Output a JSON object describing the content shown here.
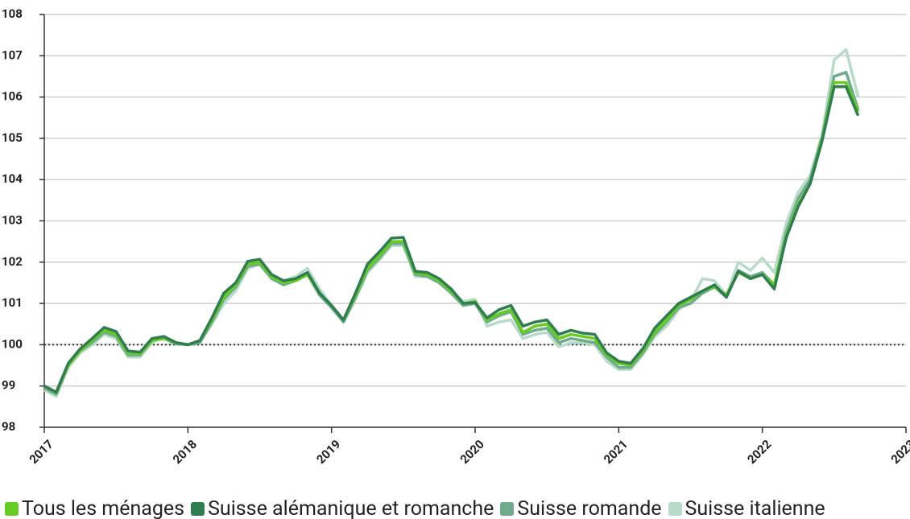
{
  "chart_data": {
    "type": "line",
    "x": [
      2017,
      2017.083,
      2017.167,
      2017.25,
      2017.333,
      2017.417,
      2017.5,
      2017.583,
      2017.667,
      2017.75,
      2017.833,
      2017.917,
      2018,
      2018.083,
      2018.167,
      2018.25,
      2018.333,
      2018.417,
      2018.5,
      2018.583,
      2018.667,
      2018.75,
      2018.833,
      2018.917,
      2019,
      2019.083,
      2019.167,
      2019.25,
      2019.333,
      2019.417,
      2019.5,
      2019.583,
      2019.667,
      2019.75,
      2019.833,
      2019.917,
      2020,
      2020.083,
      2020.167,
      2020.25,
      2020.333,
      2020.417,
      2020.5,
      2020.583,
      2020.667,
      2020.75,
      2020.833,
      2020.917,
      2021,
      2021.083,
      2021.167,
      2021.25,
      2021.333,
      2021.417,
      2021.5,
      2021.583,
      2021.667,
      2021.75,
      2021.833,
      2021.917,
      2022,
      2022.083,
      2022.167,
      2022.25,
      2022.333,
      2022.417,
      2022.5,
      2022.583,
      2022.667
    ],
    "series": [
      {
        "name": "Suisse italienne",
        "color": "#b8dbc9",
        "values": [
          98.9,
          98.75,
          99.45,
          99.8,
          100.0,
          100.25,
          100.15,
          99.7,
          99.7,
          100.05,
          100.2,
          100.05,
          100.0,
          100.05,
          100.5,
          101.0,
          101.3,
          101.85,
          101.95,
          101.65,
          101.55,
          101.65,
          101.85,
          101.35,
          100.95,
          100.55,
          101.1,
          101.75,
          102.05,
          102.4,
          102.4,
          101.65,
          101.65,
          101.5,
          101.3,
          101.05,
          101.1,
          100.45,
          100.55,
          100.6,
          100.15,
          100.25,
          100.3,
          99.95,
          100.05,
          100.05,
          100.0,
          99.6,
          99.4,
          99.4,
          99.75,
          100.2,
          100.45,
          100.85,
          101.05,
          101.6,
          101.55,
          101.2,
          102.0,
          101.8,
          102.1,
          101.75,
          102.95,
          103.7,
          104.1,
          105.1,
          106.9,
          107.15,
          106.0
        ]
      },
      {
        "name": "Suisse romande",
        "color": "#6fab8c",
        "values": [
          98.95,
          98.8,
          99.5,
          99.85,
          100.05,
          100.3,
          100.2,
          99.75,
          99.75,
          100.1,
          100.15,
          100.02,
          100.0,
          100.05,
          100.55,
          101.1,
          101.4,
          101.9,
          101.95,
          101.6,
          101.45,
          101.55,
          101.7,
          101.2,
          100.9,
          100.55,
          101.15,
          101.8,
          102.1,
          102.45,
          102.45,
          101.7,
          101.65,
          101.5,
          101.25,
          100.95,
          101.0,
          100.55,
          100.7,
          100.8,
          100.25,
          100.35,
          100.4,
          100.05,
          100.15,
          100.1,
          100.05,
          99.7,
          99.45,
          99.45,
          99.8,
          100.25,
          100.55,
          100.9,
          101.0,
          101.25,
          101.4,
          101.15,
          101.8,
          101.65,
          101.75,
          101.45,
          102.75,
          103.55,
          104.0,
          105.05,
          106.5,
          106.6,
          105.7
        ]
      },
      {
        "name": "Tous les ménages",
        "color": "#66cc22",
        "values": [
          99.0,
          98.85,
          99.5,
          99.85,
          100.1,
          100.35,
          100.25,
          99.8,
          99.78,
          100.1,
          100.15,
          100.05,
          100.0,
          100.1,
          100.6,
          101.15,
          101.45,
          101.95,
          102.0,
          101.65,
          101.5,
          101.55,
          101.7,
          101.25,
          100.95,
          100.6,
          101.2,
          101.85,
          102.15,
          102.5,
          102.5,
          101.75,
          101.7,
          101.55,
          101.3,
          101.0,
          101.05,
          100.6,
          100.75,
          100.85,
          100.3,
          100.45,
          100.5,
          100.15,
          100.25,
          100.2,
          100.15,
          99.75,
          99.55,
          99.5,
          99.85,
          100.3,
          100.6,
          100.95,
          101.1,
          101.3,
          101.4,
          101.2,
          101.75,
          101.6,
          101.7,
          101.45,
          102.65,
          103.4,
          103.9,
          105.0,
          106.35,
          106.35,
          105.65
        ]
      },
      {
        "name": "Suisse alémanique et romanche",
        "color": "#2f7d50",
        "values": [
          99.0,
          98.85,
          99.55,
          99.9,
          100.15,
          100.42,
          100.32,
          99.85,
          99.82,
          100.15,
          100.2,
          100.05,
          100.0,
          100.1,
          100.65,
          101.25,
          101.5,
          102.02,
          102.07,
          101.7,
          101.55,
          101.6,
          101.75,
          101.25,
          100.95,
          100.6,
          101.25,
          101.95,
          102.25,
          102.58,
          102.6,
          101.78,
          101.75,
          101.6,
          101.35,
          101.0,
          101.02,
          100.65,
          100.85,
          100.95,
          100.45,
          100.55,
          100.6,
          100.25,
          100.35,
          100.28,
          100.25,
          99.8,
          99.6,
          99.55,
          99.9,
          100.4,
          100.7,
          101.0,
          101.15,
          101.3,
          101.45,
          101.15,
          101.78,
          101.6,
          101.7,
          101.35,
          102.6,
          103.35,
          103.9,
          104.95,
          106.25,
          106.25,
          105.55
        ]
      }
    ],
    "legend_order": [
      2,
      3,
      1,
      0
    ],
    "xlim": [
      2017,
      2023
    ],
    "xticks": [
      2017,
      2018,
      2019,
      2020,
      2021,
      2022,
      2023
    ],
    "ylim": [
      98,
      108
    ],
    "yticks": [
      98,
      99,
      100,
      101,
      102,
      103,
      104,
      105,
      106,
      107,
      108
    ],
    "reference_line": 100,
    "grid": true,
    "legend": "bottom"
  }
}
